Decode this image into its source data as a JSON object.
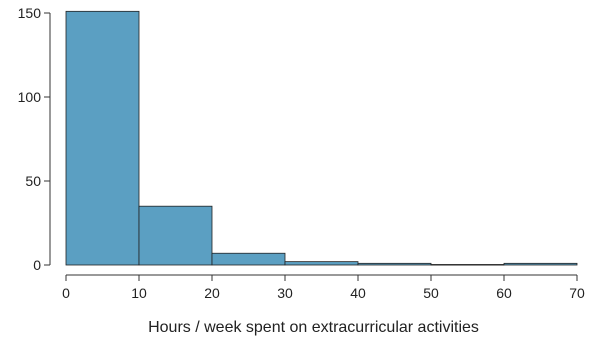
{
  "chart_data": {
    "type": "bar",
    "bins": [
      {
        "start": 0,
        "end": 10,
        "value": 151
      },
      {
        "start": 10,
        "end": 20,
        "value": 35
      },
      {
        "start": 20,
        "end": 30,
        "value": 7
      },
      {
        "start": 30,
        "end": 40,
        "value": 2
      },
      {
        "start": 40,
        "end": 50,
        "value": 1
      },
      {
        "start": 50,
        "end": 60,
        "value": 0.3
      },
      {
        "start": 60,
        "end": 70,
        "value": 1
      }
    ],
    "xlabel": "Hours / week spent on extracurricular activities",
    "ylabel": "",
    "xlim": [
      0,
      70
    ],
    "ylim": [
      0,
      150
    ],
    "xticks": [
      "0",
      "10",
      "20",
      "30",
      "40",
      "50",
      "60",
      "70"
    ],
    "yticks": [
      "0",
      "50",
      "100",
      "150"
    ],
    "bar_color": "#5b9fc2",
    "grid": false,
    "legend": "none"
  }
}
